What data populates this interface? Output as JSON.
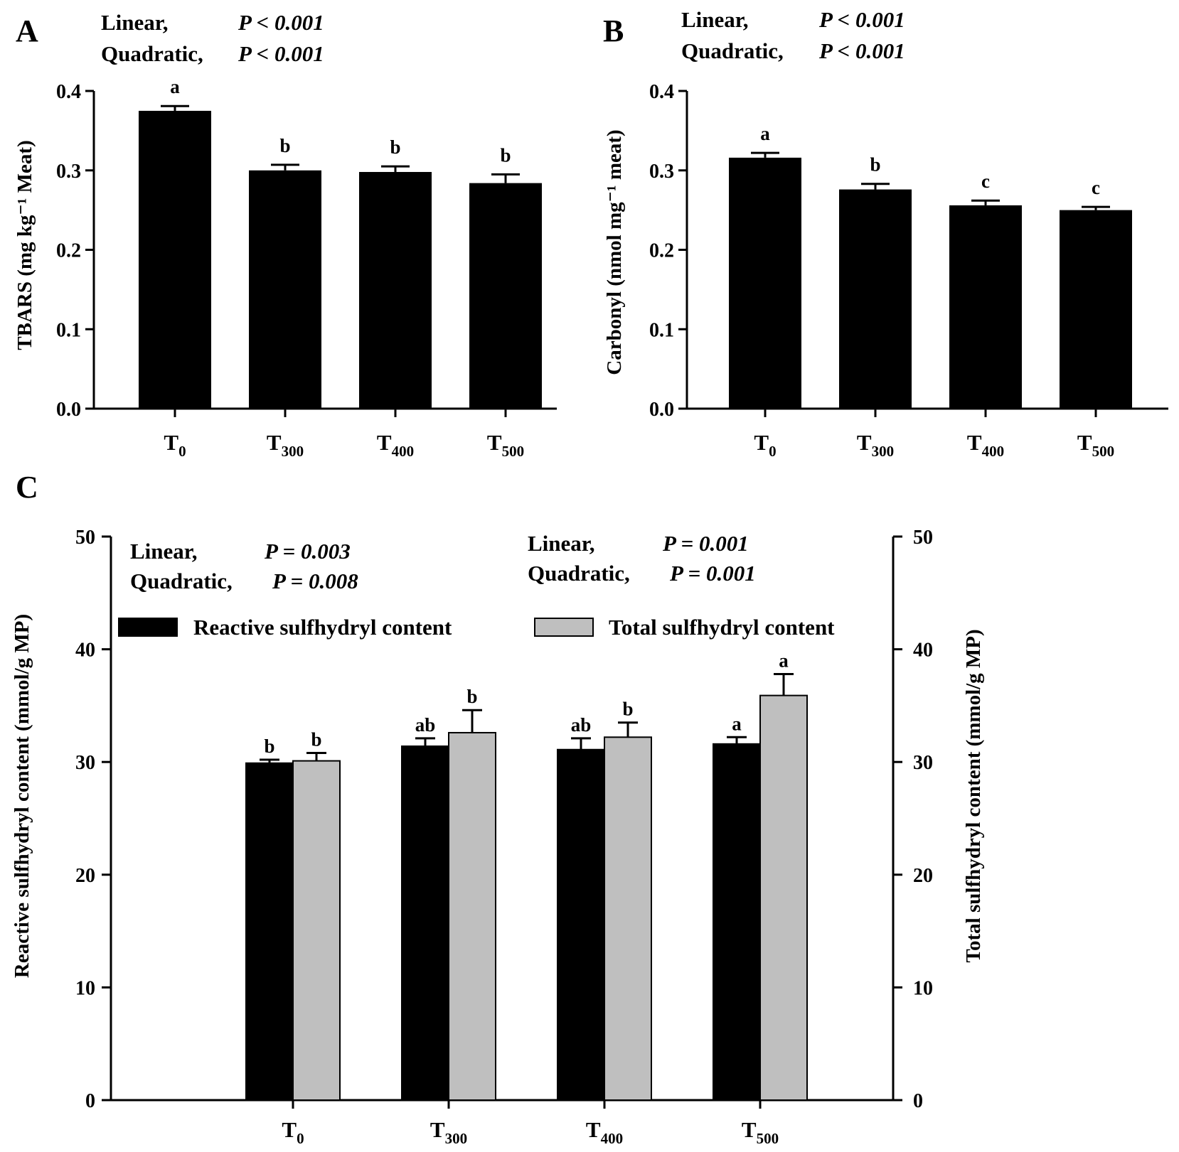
{
  "chart_data": [
    {
      "panel": "A",
      "type": "bar",
      "stats": {
        "linear_label": "Linear,",
        "linear_p": "P < 0.001",
        "quadratic_label": "Quadratic,",
        "quadratic_p": "P < 0.001"
      },
      "ylabel": "TBARS (mg kg⁻¹ Meat)",
      "ylim": [
        0,
        0.4
      ],
      "yticks": [
        "0.0",
        "0.1",
        "0.2",
        "0.3",
        "0.4"
      ],
      "categories": [
        {
          "base": "T",
          "sub": "0"
        },
        {
          "base": "T",
          "sub": "300"
        },
        {
          "base": "T",
          "sub": "400"
        },
        {
          "base": "T",
          "sub": "500"
        }
      ],
      "values": [
        0.375,
        0.3,
        0.298,
        0.284
      ],
      "errors": [
        0.006,
        0.007,
        0.007,
        0.011
      ],
      "letters": [
        "a",
        "b",
        "b",
        "b"
      ],
      "color": "#000000"
    },
    {
      "panel": "B",
      "type": "bar",
      "stats": {
        "linear_label": "Linear,",
        "linear_p": "P < 0.001",
        "quadratic_label": "Quadratic,",
        "quadratic_p": "P < 0.001"
      },
      "ylabel": "Carbonyl (nmol mg⁻¹ meat)",
      "ylim": [
        0,
        0.4
      ],
      "yticks": [
        "0.0",
        "0.1",
        "0.2",
        "0.3",
        "0.4"
      ],
      "categories": [
        {
          "base": "T",
          "sub": "0"
        },
        {
          "base": "T",
          "sub": "300"
        },
        {
          "base": "T",
          "sub": "400"
        },
        {
          "base": "T",
          "sub": "500"
        }
      ],
      "values": [
        0.316,
        0.276,
        0.256,
        0.25
      ],
      "errors": [
        0.006,
        0.007,
        0.006,
        0.004
      ],
      "letters": [
        "a",
        "b",
        "c",
        "c"
      ],
      "color": "#000000"
    },
    {
      "panel": "C",
      "type": "bar",
      "stats_left": {
        "linear_label": "Linear,",
        "linear_p": "P = 0.003",
        "quadratic_label": "Quadratic,",
        "quadratic_p": "P = 0.008"
      },
      "stats_right": {
        "linear_label": "Linear,",
        "linear_p": "P = 0.001",
        "quadratic_label": "Quadratic,",
        "quadratic_p": "P = 0.001"
      },
      "ylabel": "Reactive sulfhydryl content (mmol/g MP)",
      "ylabel_right": "Total sulfhydryl content (mmol/g MP)",
      "ylim": [
        0,
        50
      ],
      "yticks": [
        "0",
        "10",
        "20",
        "30",
        "40",
        "50"
      ],
      "categories": [
        {
          "base": "T",
          "sub": "0"
        },
        {
          "base": "T",
          "sub": "300"
        },
        {
          "base": "T",
          "sub": "400"
        },
        {
          "base": "T",
          "sub": "500"
        }
      ],
      "series": [
        {
          "name": "Reactive sulfhydryl content",
          "color": "#000000",
          "values": [
            29.9,
            31.4,
            31.1,
            31.6
          ],
          "errors": [
            0.3,
            0.7,
            1.0,
            0.6
          ],
          "letters": [
            "b",
            "ab",
            "ab",
            "a"
          ]
        },
        {
          "name": "Total sulfhydryl content",
          "color": "#bfbfbf",
          "values": [
            30.1,
            32.6,
            32.2,
            35.9
          ],
          "errors": [
            0.7,
            2.0,
            1.3,
            1.9
          ],
          "letters": [
            "b",
            "b",
            "b",
            "a"
          ]
        }
      ]
    }
  ]
}
